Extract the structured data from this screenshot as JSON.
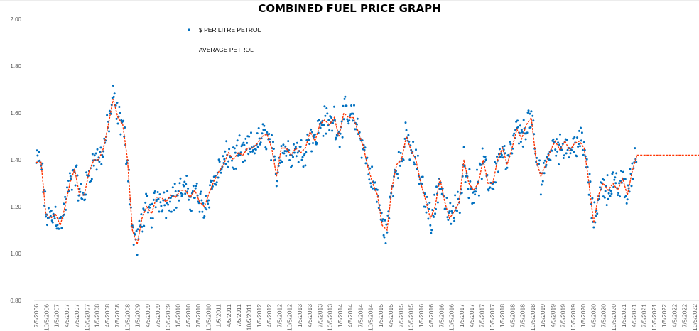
{
  "chart_data": {
    "type": "scatter",
    "title": "COMBINED FUEL PRICE GRAPH",
    "xlabel": "",
    "ylabel": "",
    "ylim": [
      0.8,
      2.0
    ],
    "yticks": [
      "0.80",
      "1.00",
      "1.20",
      "1.40",
      "1.60",
      "1.80",
      "2.00"
    ],
    "ytick_values": [
      0.8,
      1.0,
      1.2,
      1.4,
      1.6,
      1.8,
      2.0
    ],
    "grid": false,
    "legend_position": "top-left",
    "xticks": [
      "7/5/2006",
      "10/5/2006",
      "1/5/2007",
      "4/5/2007",
      "7/5/2007",
      "10/5/2007",
      "1/5/2008",
      "4/5/2008",
      "7/5/2008",
      "10/5/2008",
      "1/5/2009",
      "4/5/2009",
      "7/5/2009",
      "10/5/2009",
      "1/5/2010",
      "4/5/2010",
      "7/5/2010",
      "10/5/2010",
      "1/5/2011",
      "4/5/2011",
      "7/5/2011",
      "10/5/2011",
      "1/5/2012",
      "4/5/2012",
      "7/5/2012",
      "10/5/2012",
      "1/5/2013",
      "4/5/2013",
      "7/5/2013",
      "10/5/2013",
      "1/5/2014",
      "4/5/2014",
      "7/5/2014",
      "10/5/2014",
      "1/5/2015",
      "4/5/2015",
      "7/5/2015",
      "10/5/2015",
      "1/5/2016",
      "4/5/2016",
      "7/5/2016",
      "10/5/2016",
      "1/5/2017",
      "4/5/2017",
      "7/5/2017",
      "10/5/2017",
      "1/5/2018",
      "4/5/2018",
      "7/5/2018",
      "10/5/2018",
      "1/5/2019",
      "4/5/2019",
      "7/5/2019",
      "10/5/2019",
      "1/5/2020",
      "4/5/2020",
      "7/5/2020",
      "10/5/2020",
      "1/5/2021",
      "4/5/2021",
      "7/5/2021",
      "10/5/2021",
      "1/5/2022",
      "4/5/2022",
      "7/5/2022",
      "10/5/2022"
    ],
    "series": [
      {
        "name": "$ PER LITRE PETROL",
        "kind": "scatter",
        "color": "#0070C0",
        "spread": 0.08,
        "points_per_step": 7
      },
      {
        "name": "AVERAGE PETROL",
        "kind": "line-dashed",
        "color": "#FF3300",
        "x_start_quarter": 0,
        "x_end_quarter": 59.3,
        "values": [
          1.39,
          1.39,
          1.17,
          1.15,
          1.17,
          1.12,
          1.2,
          1.3,
          1.36,
          1.25,
          1.25,
          1.35,
          1.4,
          1.4,
          1.45,
          1.55,
          1.66,
          1.58,
          1.55,
          1.4,
          1.1,
          1.04,
          1.15,
          1.2,
          1.17,
          1.24,
          1.24,
          1.22,
          1.25,
          1.24,
          1.27,
          1.27,
          1.24,
          1.27,
          1.22,
          1.2,
          1.26,
          1.31,
          1.35,
          1.38,
          1.43,
          1.4,
          1.43,
          1.42,
          1.45,
          1.45,
          1.47,
          1.5,
          1.51,
          1.45,
          1.33,
          1.45,
          1.45,
          1.42,
          1.45,
          1.43,
          1.45,
          1.52,
          1.48,
          1.55,
          1.57,
          1.55,
          1.58,
          1.5,
          1.6,
          1.58,
          1.58,
          1.52,
          1.46,
          1.37,
          1.3,
          1.25,
          1.12,
          1.1,
          1.28,
          1.38,
          1.4,
          1.5,
          1.44,
          1.4,
          1.3,
          1.23,
          1.15,
          1.2,
          1.32,
          1.22,
          1.15,
          1.18,
          1.22,
          1.4,
          1.3,
          1.27,
          1.3,
          1.4,
          1.3,
          1.3,
          1.4,
          1.45,
          1.38,
          1.45,
          1.53,
          1.49,
          1.55,
          1.58,
          1.4,
          1.33,
          1.38,
          1.44,
          1.48,
          1.44,
          1.48,
          1.44,
          1.47,
          1.48,
          1.45,
          1.3,
          1.13,
          1.25,
          1.3,
          1.27,
          1.3,
          1.27,
          1.32,
          1.25,
          1.35,
          1.42
        ],
        "flat_extension_value": 1.42
      }
    ]
  }
}
